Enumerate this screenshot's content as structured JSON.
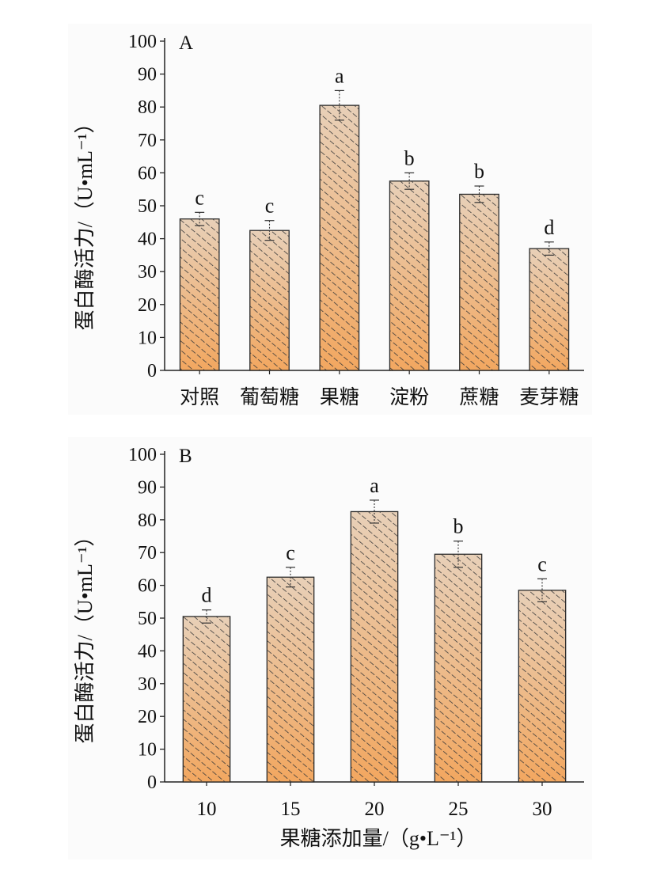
{
  "chart_data": [
    {
      "type": "bar",
      "panel_label": "A",
      "ylabel": "蛋白酶活力/（U•mL⁻¹）",
      "xlabel": "",
      "ylim": [
        0,
        100
      ],
      "yticks": [
        0,
        10,
        20,
        30,
        40,
        50,
        60,
        70,
        80,
        90,
        100
      ],
      "categories": [
        "对照",
        "葡萄糖",
        "果糖",
        "淀粉",
        "蔗糖",
        "麦芽糖"
      ],
      "values": [
        46,
        42.5,
        80.5,
        57.5,
        53.5,
        37
      ],
      "errors": [
        2,
        3,
        4.5,
        2.5,
        2.5,
        2
      ],
      "significance": [
        "c",
        "c",
        "a",
        "b",
        "b",
        "d"
      ]
    },
    {
      "type": "bar",
      "panel_label": "B",
      "ylabel": "蛋白酶活力/（U•mL⁻¹）",
      "xlabel": "果糖添加量/（g•L⁻¹）",
      "ylim": [
        0,
        100
      ],
      "yticks": [
        0,
        10,
        20,
        30,
        40,
        50,
        60,
        70,
        80,
        90,
        100
      ],
      "categories": [
        "10",
        "15",
        "20",
        "25",
        "30"
      ],
      "values": [
        50.5,
        62.5,
        82.5,
        69.5,
        58.5
      ],
      "errors": [
        2,
        3,
        3.5,
        4,
        3.5
      ],
      "significance": [
        "d",
        "c",
        "a",
        "b",
        "c"
      ]
    }
  ],
  "colors": {
    "bar_top": "#e8d0b8",
    "bar_bottom": "#f2a760",
    "hatch": "#3a3a3a",
    "axis": "#222222"
  }
}
